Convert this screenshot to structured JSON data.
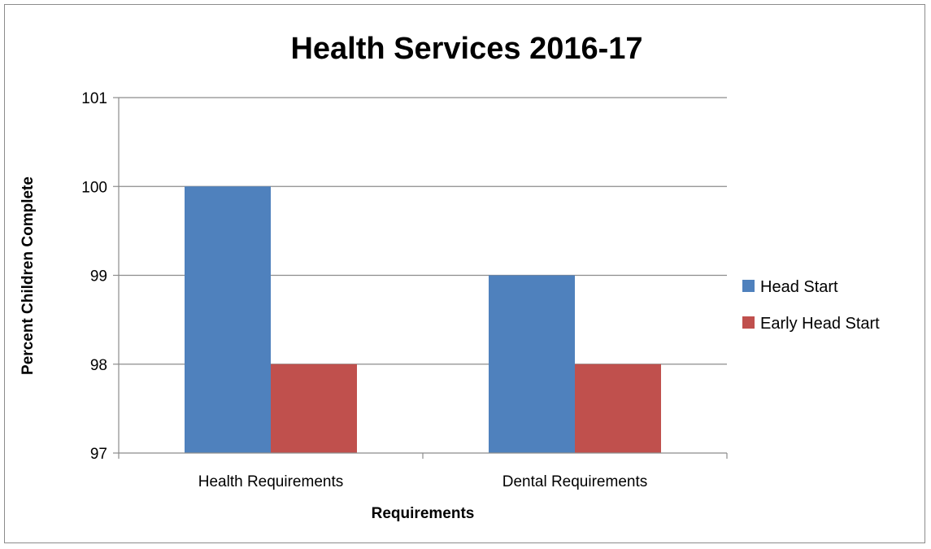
{
  "chart_data": {
    "type": "bar",
    "title": "Health Services 2016-17",
    "xlabel": "Requirements",
    "ylabel": "Percent Children Complete",
    "categories": [
      "Health Requirements",
      "Dental Requirements"
    ],
    "series": [
      {
        "name": "Head Start",
        "values": [
          100,
          99
        ],
        "color": "#4F81BD"
      },
      {
        "name": "Early Head Start",
        "values": [
          98,
          98
        ],
        "color": "#C0504D"
      }
    ],
    "ylim": [
      97,
      101
    ],
    "yticks": [
      "97",
      "98",
      "99",
      "100",
      "101"
    ],
    "grid": true,
    "legend_position": "right"
  }
}
